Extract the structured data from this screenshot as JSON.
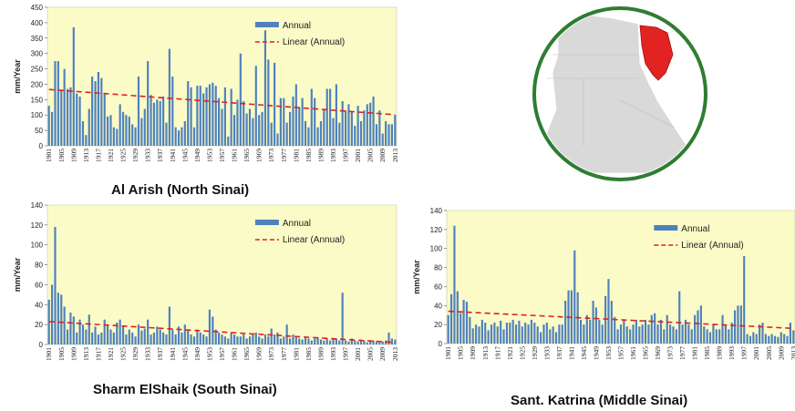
{
  "colors": {
    "plot_bg": "#fbfbc8",
    "bar": "#4f81bd",
    "trend": "#e02020",
    "map_ring": "#2e7d32",
    "map_land": "#d9d9d9",
    "map_sinai": "#e32222"
  },
  "map": {
    "icon": "egypt-map-icon"
  },
  "chart_data": [
    {
      "type": "bar",
      "caption": "Al Arish (North Sinai)",
      "ylabel": "mm/Year",
      "ylim": [
        0,
        450
      ],
      "yticks": [
        0,
        50,
        100,
        150,
        200,
        250,
        300,
        350,
        400,
        450
      ],
      "x_start": 1901,
      "x_end": 2013,
      "xtick_step": 4,
      "legend": {
        "series": "Annual",
        "trend": "Linear (Annual)",
        "placement": "top-right"
      },
      "trend": {
        "start": 183,
        "end": 101
      },
      "values": [
        130,
        110,
        275,
        275,
        180,
        250,
        185,
        190,
        385,
        170,
        160,
        80,
        35,
        120,
        225,
        210,
        240,
        220,
        170,
        95,
        100,
        60,
        55,
        135,
        110,
        100,
        95,
        70,
        60,
        225,
        90,
        120,
        275,
        165,
        140,
        150,
        145,
        160,
        75,
        315,
        225,
        60,
        50,
        60,
        80,
        210,
        190,
        60,
        195,
        195,
        170,
        190,
        200,
        205,
        195,
        155,
        120,
        190,
        30,
        185,
        100,
        150,
        300,
        145,
        105,
        120,
        90,
        260,
        100,
        110,
        375,
        280,
        75,
        270,
        40,
        155,
        155,
        75,
        110,
        160,
        200,
        125,
        155,
        80,
        60,
        185,
        155,
        60,
        80,
        120,
        185,
        185,
        90,
        200,
        75,
        145,
        115,
        135,
        110,
        65,
        130,
        80,
        115,
        135,
        140,
        160,
        70,
        115,
        40,
        80,
        70,
        70,
        100
      ]
    },
    {
      "type": "bar",
      "caption": "Sharm ElShaik  (South Sinai)",
      "ylabel": "mm/Year",
      "ylim": [
        0,
        140
      ],
      "yticks": [
        0,
        20,
        40,
        60,
        80,
        100,
        120,
        140
      ],
      "x_start": 1901,
      "x_end": 2013,
      "xtick_step": 4,
      "legend": {
        "series": "Annual",
        "trend": "Linear (Annual)",
        "placement": "top-right"
      },
      "trend": {
        "start": 23,
        "end": 2
      },
      "values": [
        45,
        60,
        118,
        52,
        50,
        38,
        15,
        32,
        28,
        12,
        25,
        20,
        15,
        30,
        12,
        18,
        10,
        12,
        25,
        20,
        15,
        12,
        22,
        25,
        18,
        10,
        15,
        12,
        8,
        20,
        14,
        16,
        25,
        10,
        12,
        18,
        15,
        12,
        10,
        38,
        15,
        10,
        18,
        12,
        20,
        14,
        10,
        8,
        15,
        12,
        10,
        8,
        35,
        28,
        15,
        12,
        10,
        8,
        6,
        12,
        10,
        8,
        8,
        10,
        6,
        8,
        10,
        12,
        8,
        6,
        10,
        8,
        16,
        10,
        12,
        6,
        8,
        20,
        6,
        10,
        8,
        6,
        5,
        8,
        6,
        4,
        6,
        7,
        5,
        4,
        6,
        4,
        5,
        6,
        4,
        52,
        4,
        3,
        6,
        4,
        3,
        5,
        4,
        2,
        3,
        4,
        3,
        2,
        3,
        4,
        12,
        6,
        5
      ]
    },
    {
      "type": "bar",
      "caption": "Sant. Katrina  (Middle Sinai)",
      "ylabel": "mm/Year",
      "ylim": [
        0,
        140
      ],
      "yticks": [
        0,
        20,
        40,
        60,
        80,
        100,
        120,
        140
      ],
      "x_start": 1901,
      "x_end": 2013,
      "xtick_step": 4,
      "legend": {
        "series": "Annual",
        "trend": "Linear (Annual)",
        "placement": "top-right"
      },
      "trend": {
        "start": 34,
        "end": 16
      },
      "values": [
        30,
        52,
        124,
        55,
        32,
        46,
        44,
        28,
        16,
        20,
        18,
        25,
        22,
        14,
        20,
        22,
        18,
        24,
        15,
        22,
        22,
        25,
        20,
        24,
        18,
        22,
        20,
        25,
        22,
        18,
        12,
        20,
        22,
        15,
        18,
        12,
        20,
        20,
        45,
        56,
        56,
        98,
        54,
        25,
        20,
        30,
        25,
        45,
        38,
        25,
        20,
        50,
        68,
        45,
        28,
        15,
        20,
        25,
        18,
        15,
        20,
        25,
        18,
        20,
        25,
        20,
        30,
        32,
        20,
        25,
        15,
        30,
        20,
        18,
        15,
        55,
        20,
        25,
        20,
        15,
        30,
        35,
        40,
        18,
        15,
        12,
        20,
        15,
        15,
        30,
        20,
        15,
        22,
        35,
        40,
        40,
        92,
        10,
        8,
        12,
        10,
        20,
        22,
        10,
        8,
        10,
        8,
        7,
        12,
        10,
        8,
        22,
        14
      ]
    }
  ]
}
